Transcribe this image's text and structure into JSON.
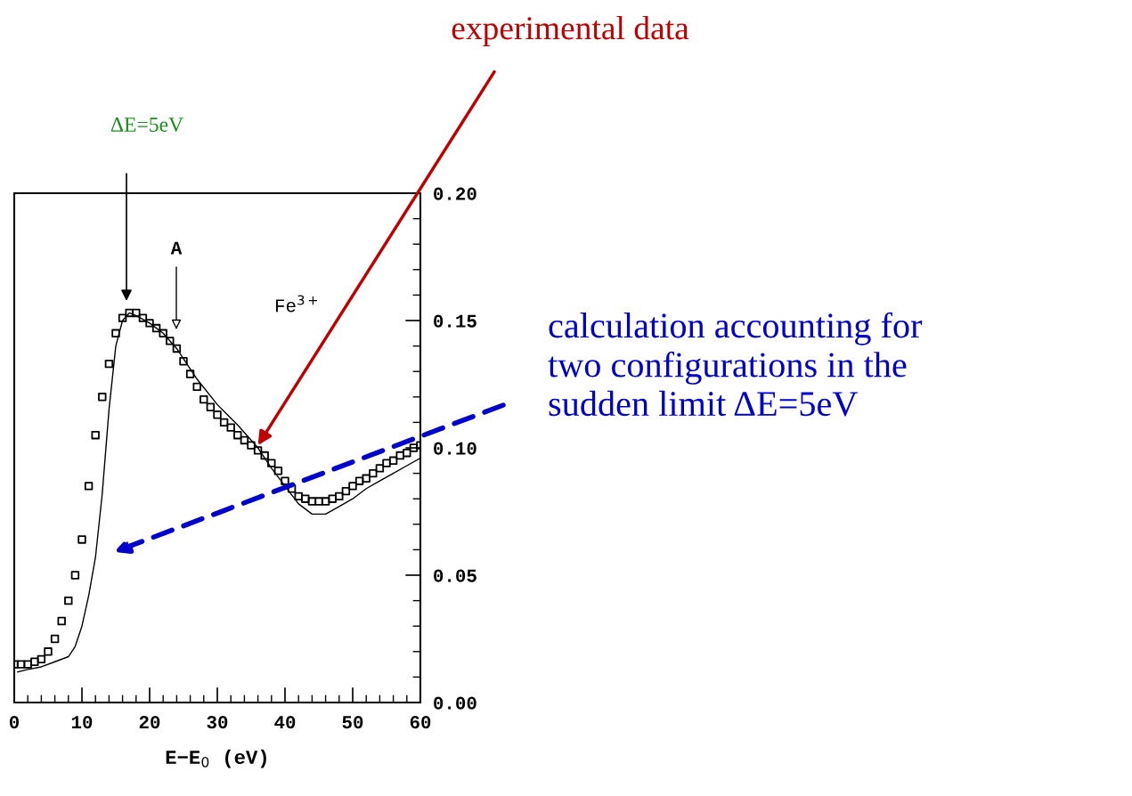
{
  "chart_data": {
    "type": "line",
    "xlabel": "E−E$_{0}$ (eV)",
    "xlim": [
      0,
      60
    ],
    "xticks": [
      0,
      10,
      20,
      30,
      40,
      50,
      60
    ],
    "ylim": [
      0,
      0.2
    ],
    "yticks": [
      {
        "value": 0,
        "label": "0.00"
      },
      0.05,
      {
        "value": 0.1,
        "label": "0.10"
      },
      0.15,
      {
        "value": 0.2,
        "label": "0.20"
      }
    ],
    "tick_labels": "xy",
    "grid": false,
    "series": [
      {
        "type": "scatter",
        "marker": "square",
        "color": "#000000",
        "x": [
          0,
          1,
          2,
          3,
          4,
          5,
          6,
          7,
          8,
          9,
          10,
          11,
          12,
          13,
          14,
          15,
          16,
          17,
          18,
          19,
          20,
          21,
          22,
          23,
          24,
          25,
          26,
          27,
          28,
          29,
          30,
          31,
          32,
          33,
          34,
          35,
          36,
          37,
          38,
          39,
          40,
          41,
          42,
          43,
          44,
          45,
          46,
          47,
          48,
          49,
          50,
          51,
          52,
          53,
          54,
          55,
          56,
          57,
          58,
          59,
          60
        ],
        "values": [
          0.015,
          0.015,
          0.015,
          0.016,
          0.017,
          0.02,
          0.025,
          0.032,
          0.04,
          0.05,
          0.064,
          0.085,
          0.105,
          0.12,
          0.133,
          0.145,
          0.151,
          0.153,
          0.153,
          0.151,
          0.149,
          0.147,
          0.145,
          0.142,
          0.139,
          0.134,
          0.129,
          0.124,
          0.119,
          0.116,
          0.113,
          0.11,
          0.108,
          0.105,
          0.103,
          0.101,
          0.099,
          0.097,
          0.094,
          0.091,
          0.087,
          0.084,
          0.081,
          0.08,
          0.079,
          0.079,
          0.079,
          0.08,
          0.081,
          0.083,
          0.085,
          0.087,
          0.088,
          0.09,
          0.092,
          0.094,
          0.095,
          0.097,
          0.098,
          0.1,
          0.101
        ]
      },
      {
        "marker": "none",
        "line_style": "solid",
        "color": "#000000",
        "x": [
          0.5,
          2,
          4,
          6,
          8,
          9,
          10,
          11,
          12,
          13,
          14,
          15,
          16,
          17,
          18,
          20,
          22,
          24,
          27,
          30,
          33,
          36,
          38,
          40,
          42,
          44,
          46,
          48,
          50,
          52,
          54,
          56,
          58,
          60
        ],
        "values": [
          0.012,
          0.013,
          0.014,
          0.016,
          0.018,
          0.022,
          0.03,
          0.042,
          0.057,
          0.082,
          0.115,
          0.14,
          0.15,
          0.153,
          0.152,
          0.149,
          0.145,
          0.139,
          0.127,
          0.117,
          0.109,
          0.1,
          0.092,
          0.085,
          0.078,
          0.074,
          0.074,
          0.077,
          0.08,
          0.084,
          0.087,
          0.09,
          0.093,
          0.096
        ]
      }
    ],
    "annotations": [
      "ΔE=5eV",
      "A",
      "Fe$^{3+}$",
      {
        "text": "experimental data",
        "x": 36,
        "y": 0.101
      },
      "calculation accounting for\ntwo configurations in the\nsudden limit ΔE=5eV"
    ]
  }
}
